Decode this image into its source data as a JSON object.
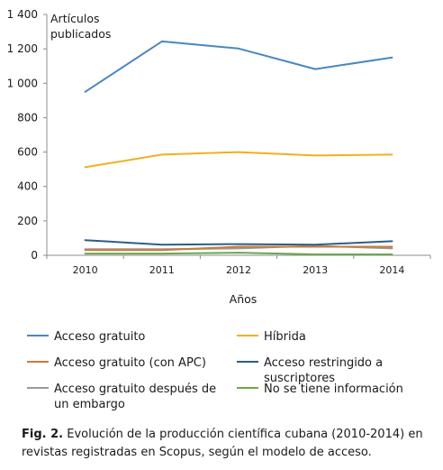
{
  "chart_data": {
    "type": "line",
    "ylabel_line1": "Artículos",
    "ylabel_line2": "publicados",
    "xlabel": "Años",
    "x": [
      "2010",
      "2011",
      "2012",
      "2013",
      "2014"
    ],
    "ylim": [
      0,
      1400
    ],
    "yticks": [
      0,
      200,
      400,
      600,
      800,
      1000,
      1200,
      1400
    ],
    "ytick_labels": [
      "0",
      "200",
      "400",
      "600",
      "800",
      "1 000",
      "1 200",
      "1 400"
    ],
    "grid": false,
    "legend_position": "bottom",
    "series": [
      {
        "name": "Acceso gratuito",
        "color": "#4A86C2",
        "values": [
          950,
          1243,
          1202,
          1082,
          1150
        ]
      },
      {
        "name": "Híbrida",
        "color": "#F2B01E",
        "values": [
          512,
          585,
          600,
          580,
          585
        ]
      },
      {
        "name": "Acceso gratuito (con APC)",
        "color": "#C97B3A",
        "values": [
          30,
          30,
          50,
          50,
          50
        ]
      },
      {
        "name": "Acceso restringido a suscriptores",
        "color": "#2E5C8A",
        "values": [
          88,
          62,
          65,
          62,
          82
        ]
      },
      {
        "name": "Acceso gratuito después de un embargo",
        "color": "#9A9A9A",
        "values": [
          35,
          35,
          40,
          55,
          40
        ]
      },
      {
        "name": "No se tiene información",
        "color": "#6AA84F",
        "values": [
          10,
          10,
          15,
          5,
          5
        ]
      }
    ],
    "legend": [
      {
        "lines": [
          "Acceso gratuito"
        ],
        "series": 0
      },
      {
        "lines": [
          "Híbrida"
        ],
        "series": 1
      },
      {
        "lines": [
          "Acceso gratuito (con APC)"
        ],
        "series": 2
      },
      {
        "lines": [
          "Acceso restringido a",
          "suscriptores"
        ],
        "series": 3
      },
      {
        "lines": [
          "Acceso gratuito después de",
          "un embargo"
        ],
        "series": 4
      },
      {
        "lines": [
          "No se tiene información"
        ],
        "series": 5
      }
    ]
  },
  "caption": {
    "label": "Fig. 2.",
    "text": " Evolución de la producción científica cubana (2010-2014) en revistas registradas en Scopus, según el modelo de acceso."
  }
}
